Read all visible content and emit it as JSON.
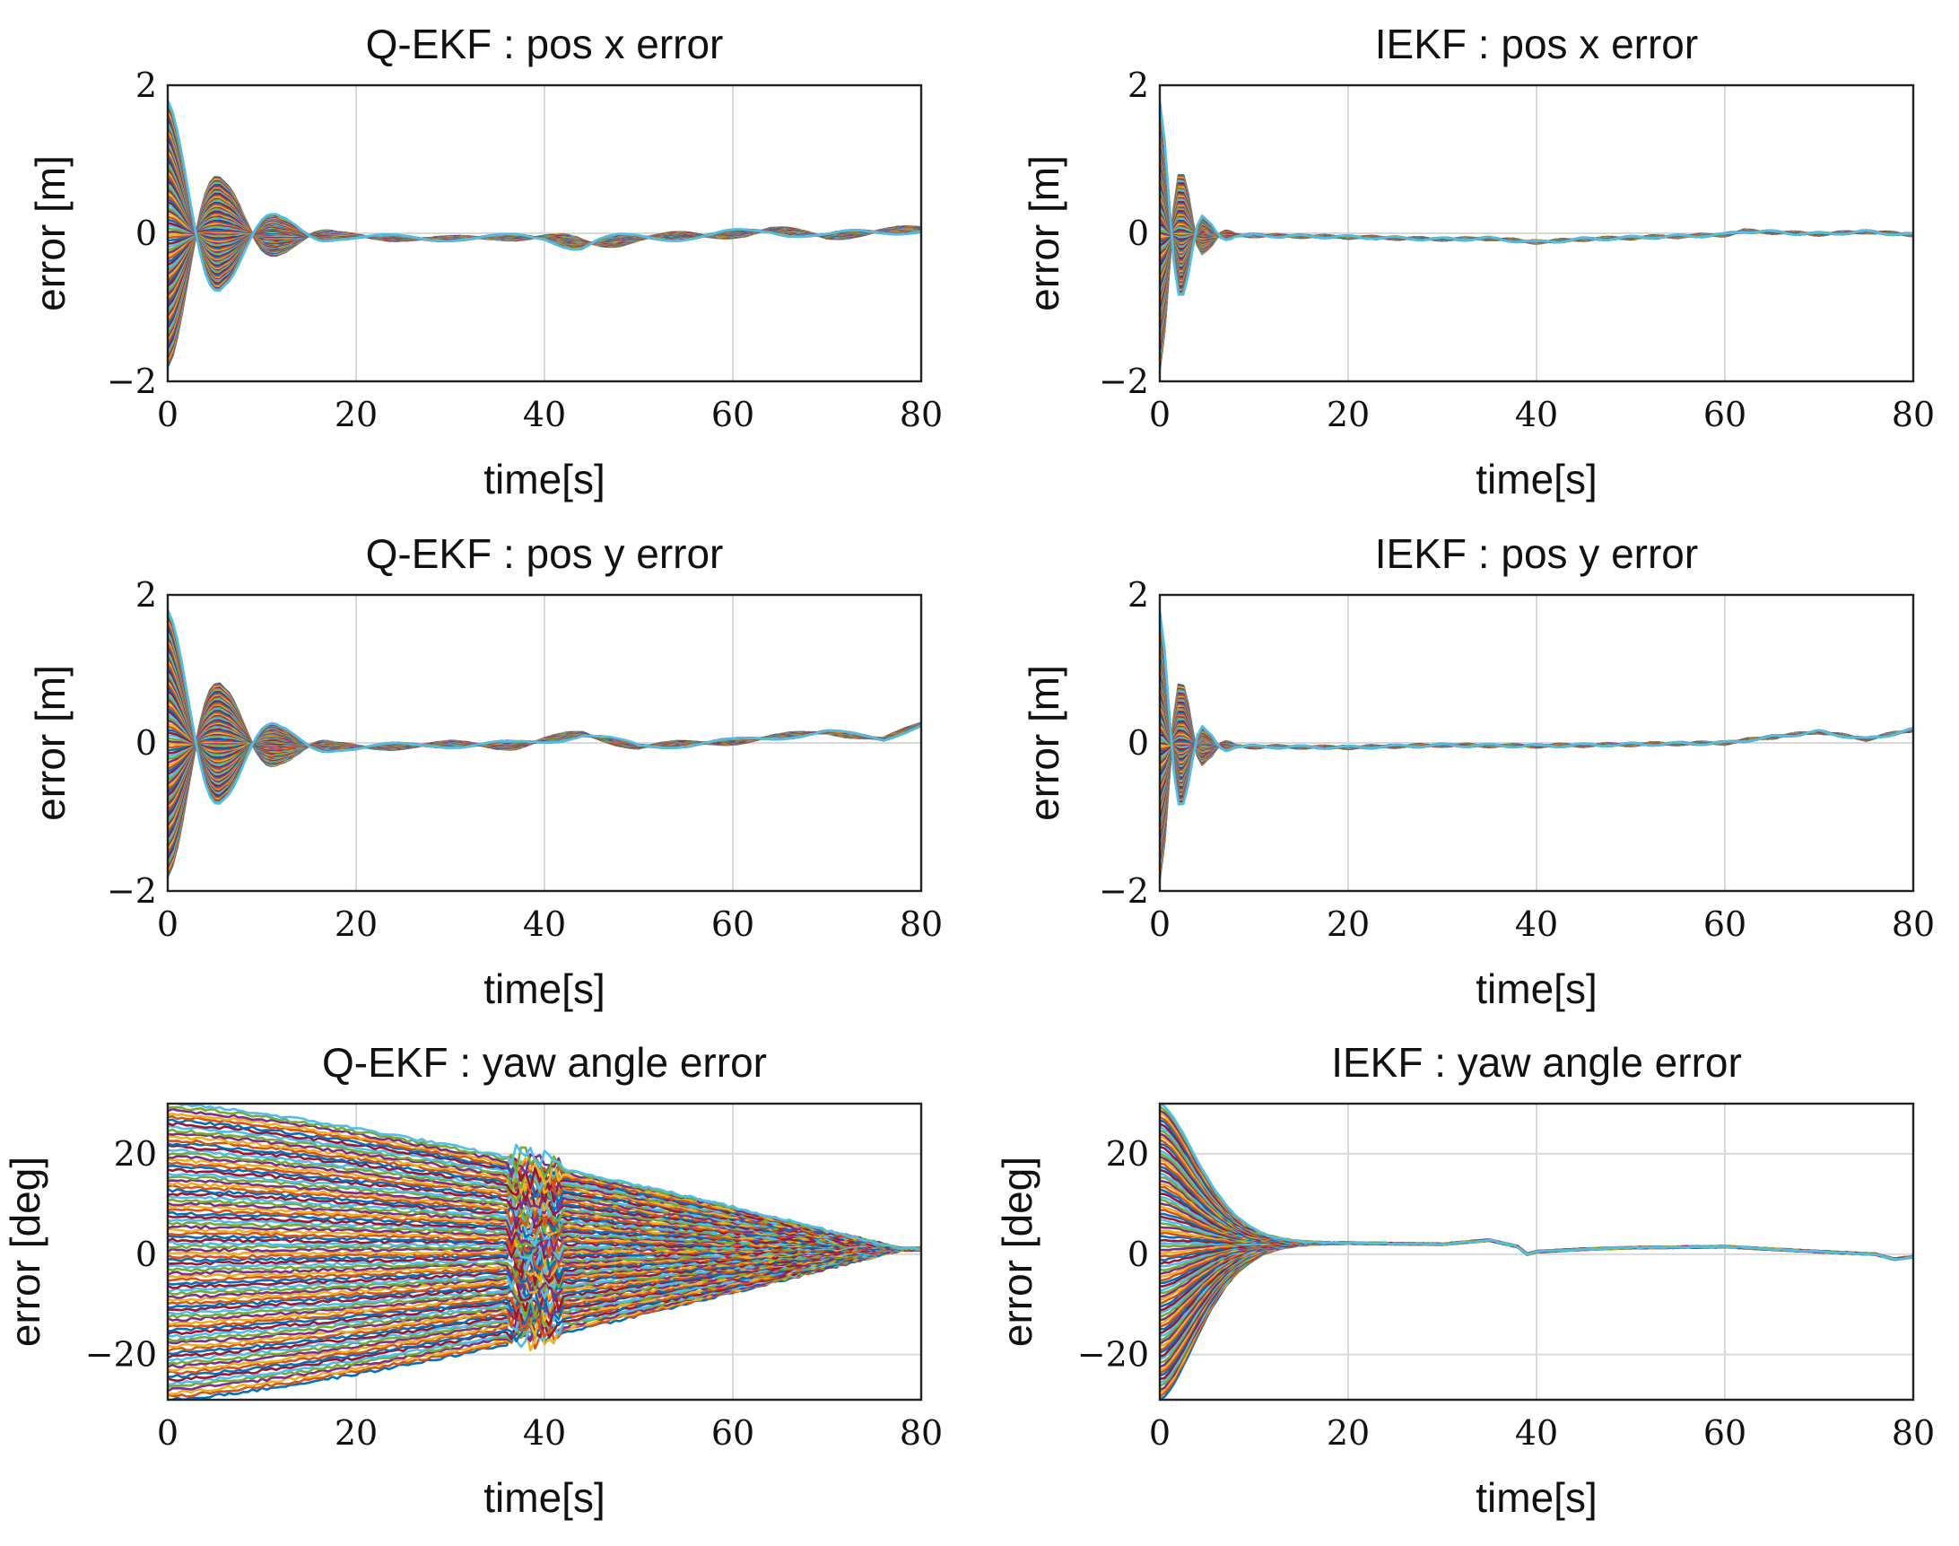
{
  "chart_data": [
    {
      "id": "qekf-pos-x",
      "type": "line",
      "title": "Q-EKF : pos x error",
      "xlabel": "time[s]",
      "ylabel": "error [m]",
      "xlim": [
        0,
        80
      ],
      "ylim": [
        -2,
        2
      ],
      "xticks": [
        0,
        20,
        40,
        60,
        80
      ],
      "yticks": [
        -2,
        0,
        2
      ],
      "ytick_labels": [
        "−2",
        "0",
        "2"
      ],
      "grid": true,
      "series_description": "Monte Carlo runs, initial error spread -1.8 to 1.8, oscillating decay converging by t=20 to a common trajectory",
      "envelope_max": [
        1.8,
        0.7,
        0.25,
        0.05,
        0.03,
        0.05,
        0.12,
        0.06,
        0.05
      ],
      "envelope_time": [
        0,
        6,
        12,
        18,
        30,
        40,
        44,
        50,
        80
      ],
      "common_trajectory": {
        "t": [
          0,
          10,
          20,
          28,
          35,
          40,
          44,
          50,
          58,
          64,
          70,
          75,
          80
        ],
        "v": [
          0,
          -0.02,
          -0.04,
          -0.08,
          -0.05,
          -0.06,
          -0.15,
          -0.06,
          -0.03,
          0.04,
          -0.04,
          0.02,
          0.05
        ]
      }
    },
    {
      "id": "iekf-pos-x",
      "type": "line",
      "title": "IEKF : pos x error",
      "xlabel": "time[s]",
      "ylabel": "error [m]",
      "xlim": [
        0,
        80
      ],
      "ylim": [
        -2,
        2
      ],
      "xticks": [
        0,
        20,
        40,
        60,
        80
      ],
      "yticks": [
        -2,
        0,
        2
      ],
      "ytick_labels": [
        "−2",
        "0",
        "2"
      ],
      "grid": true,
      "series_description": "Monte Carlo runs converging quickly by t=8 to a single trajectory",
      "envelope_max": [
        1.8,
        0.8,
        0.2,
        0.02
      ],
      "envelope_time": [
        0,
        2.5,
        5,
        8
      ],
      "common_trajectory": {
        "t": [
          0,
          10,
          20,
          30,
          35,
          40,
          45,
          50,
          60,
          62,
          70,
          75,
          80
        ],
        "v": [
          -0.02,
          -0.03,
          -0.05,
          -0.08,
          -0.07,
          -0.12,
          -0.08,
          -0.06,
          -0.02,
          0.03,
          -0.01,
          0.02,
          -0.02
        ]
      }
    },
    {
      "id": "qekf-pos-y",
      "type": "line",
      "title": "Q-EKF : pos y error",
      "xlabel": "time[s]",
      "ylabel": "error [m]",
      "xlim": [
        0,
        80
      ],
      "ylim": [
        -2,
        2
      ],
      "xticks": [
        0,
        20,
        40,
        60,
        80
      ],
      "yticks": [
        -2,
        0,
        2
      ],
      "ytick_labels": [
        "−2",
        "0",
        "2"
      ],
      "grid": true,
      "series_description": "Monte Carlo runs, initial error spread -1.8 to 1.8, oscillating decay converging by t=20",
      "envelope_max": [
        1.8,
        0.75,
        0.25,
        0.05,
        0.04,
        0.06,
        0.05,
        0.03
      ],
      "envelope_time": [
        0,
        6,
        12,
        18,
        28,
        37,
        44,
        80
      ],
      "common_trajectory": {
        "t": [
          0,
          10,
          20,
          30,
          37,
          44,
          50,
          60,
          70,
          76,
          80
        ],
        "v": [
          0,
          -0.02,
          -0.06,
          -0.02,
          -0.03,
          0.12,
          -0.05,
          0.02,
          0.15,
          0.05,
          0.25
        ]
      }
    },
    {
      "id": "iekf-pos-y",
      "type": "line",
      "title": "IEKF : pos y error",
      "xlabel": "time[s]",
      "ylabel": "error [m]",
      "xlim": [
        0,
        80
      ],
      "ylim": [
        -2,
        2
      ],
      "xticks": [
        0,
        20,
        40,
        60,
        80
      ],
      "yticks": [
        -2,
        0,
        2
      ],
      "ytick_labels": [
        "−2",
        "0",
        "2"
      ],
      "grid": true,
      "series_description": "Monte Carlo runs converging quickly by t=8 to a single trajectory",
      "envelope_max": [
        1.8,
        0.8,
        0.2,
        0.02
      ],
      "envelope_time": [
        0,
        2.5,
        5,
        8
      ],
      "common_trajectory": {
        "t": [
          0,
          10,
          20,
          30,
          40,
          50,
          60,
          65,
          70,
          75,
          80
        ],
        "v": [
          -0.02,
          -0.05,
          -0.06,
          -0.03,
          -0.04,
          -0.02,
          0.0,
          0.08,
          0.15,
          0.05,
          0.18
        ]
      }
    },
    {
      "id": "qekf-yaw",
      "type": "line",
      "title": "Q-EKF : yaw angle error",
      "xlabel": "time[s]",
      "ylabel": "error [deg]",
      "xlim": [
        0,
        80
      ],
      "ylim": [
        -29,
        30
      ],
      "xticks": [
        0,
        20,
        40,
        60,
        80
      ],
      "yticks": [
        -20,
        0,
        20
      ],
      "ytick_labels": [
        "−20",
        "0",
        "20"
      ],
      "grid": true,
      "series_description": "Monte Carlo runs with initial yaw error -29 to 30 deg, slowly converging linearly to ~1 deg at t=78, disturbance near t=39",
      "initial_min": -29,
      "initial_max": 30,
      "converge_time": 78,
      "converge_value": 1,
      "disturbance_time": 39
    },
    {
      "id": "iekf-yaw",
      "type": "line",
      "title": "IEKF : yaw angle error",
      "xlabel": "time[s]",
      "ylabel": "error [deg]",
      "xlim": [
        0,
        80
      ],
      "ylim": [
        -29,
        30
      ],
      "xticks": [
        0,
        20,
        40,
        60,
        80
      ],
      "yticks": [
        -20,
        0,
        20
      ],
      "ytick_labels": [
        "−20",
        "0",
        "20"
      ],
      "grid": true,
      "series_description": "Monte Carlo runs with initial yaw error -29 to 30 deg, converging exponentially by t=15 to ~2 deg common trajectory",
      "initial_min": -29,
      "initial_max": 30,
      "converge_time": 15,
      "common_trajectory": {
        "t": [
          15,
          20,
          30,
          35,
          38,
          39,
          40,
          45,
          50,
          60,
          70,
          76,
          78,
          80
        ],
        "v": [
          2.2,
          2.2,
          2.0,
          2.8,
          1.5,
          0.0,
          0.5,
          1.0,
          1.3,
          1.5,
          0.5,
          0.0,
          -1.0,
          -0.5
        ]
      }
    }
  ]
}
